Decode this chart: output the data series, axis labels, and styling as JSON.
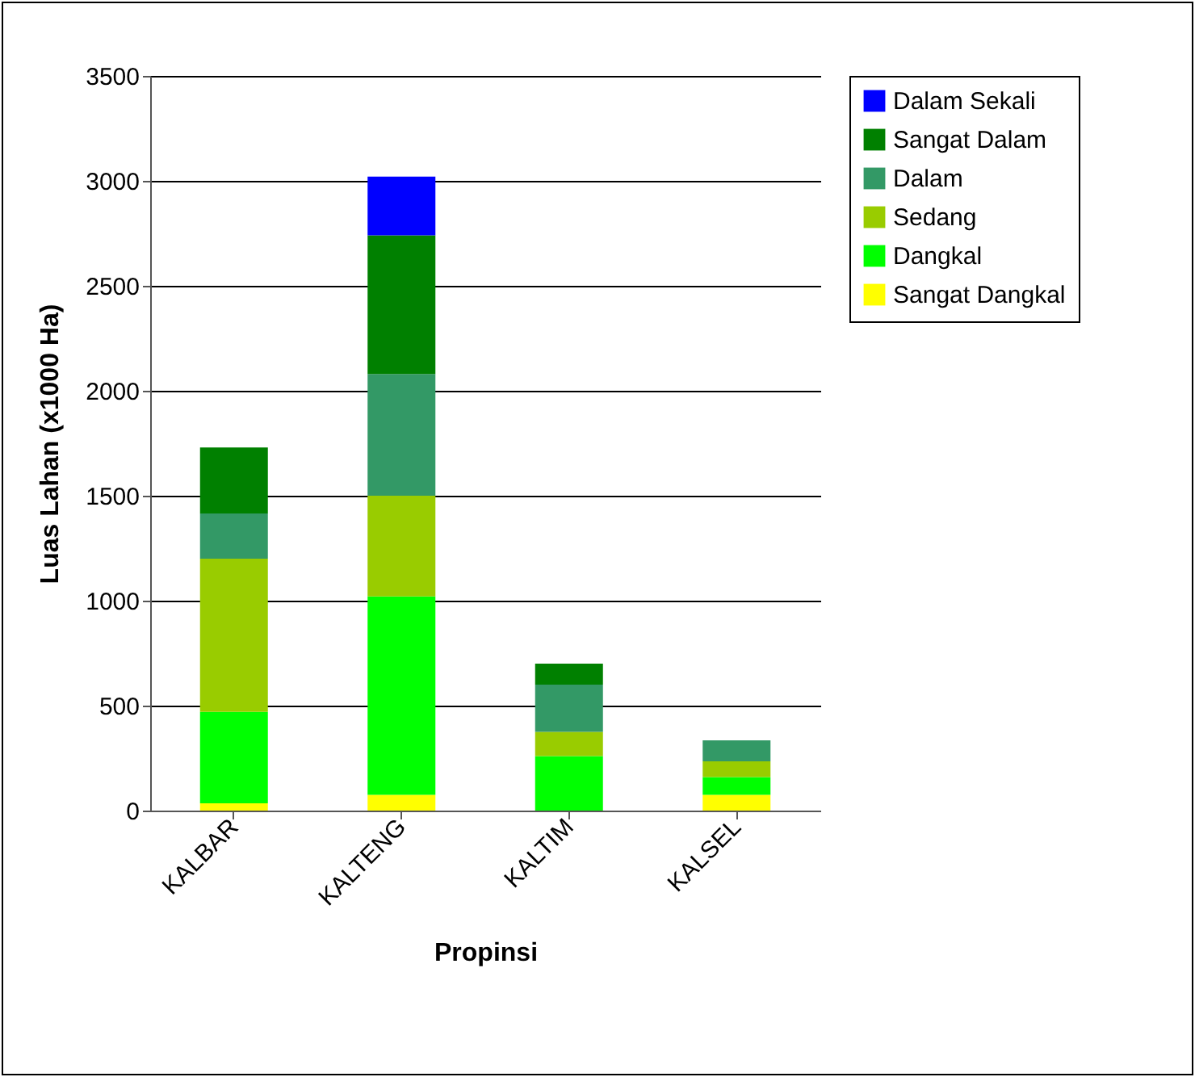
{
  "chart_data": {
    "type": "bar",
    "stacked": true,
    "xlabel": "Propinsi",
    "ylabel": "Luas Lahan (x1000 Ha)",
    "categories": [
      "KALBAR",
      "KALTENG",
      "KALTIM",
      "KALSEL"
    ],
    "series": [
      {
        "name": "Sangat Dangkal",
        "color": "#ffff00",
        "values": [
          35,
          75,
          null,
          75
        ]
      },
      {
        "name": "Dangkal",
        "color": "#00ff00",
        "values": [
          435,
          945,
          260,
          85
        ]
      },
      {
        "name": "Sedang",
        "color": "#99cc00",
        "values": [
          730,
          480,
          115,
          75
        ]
      },
      {
        "name": "Dalam",
        "color": "#339966",
        "values": [
          215,
          580,
          225,
          100
        ]
      },
      {
        "name": "Sangat Dalam",
        "color": "#008000",
        "values": [
          315,
          660,
          100,
          null
        ]
      },
      {
        "name": "Dalam Sekali",
        "color": "#0000ff",
        "values": [
          null,
          280,
          null,
          null
        ]
      }
    ],
    "ylim": [
      0,
      3500
    ],
    "yticks": [
      0,
      500,
      1000,
      1500,
      2000,
      2500,
      3000,
      3500
    ],
    "grid": "y",
    "legend": "right"
  }
}
